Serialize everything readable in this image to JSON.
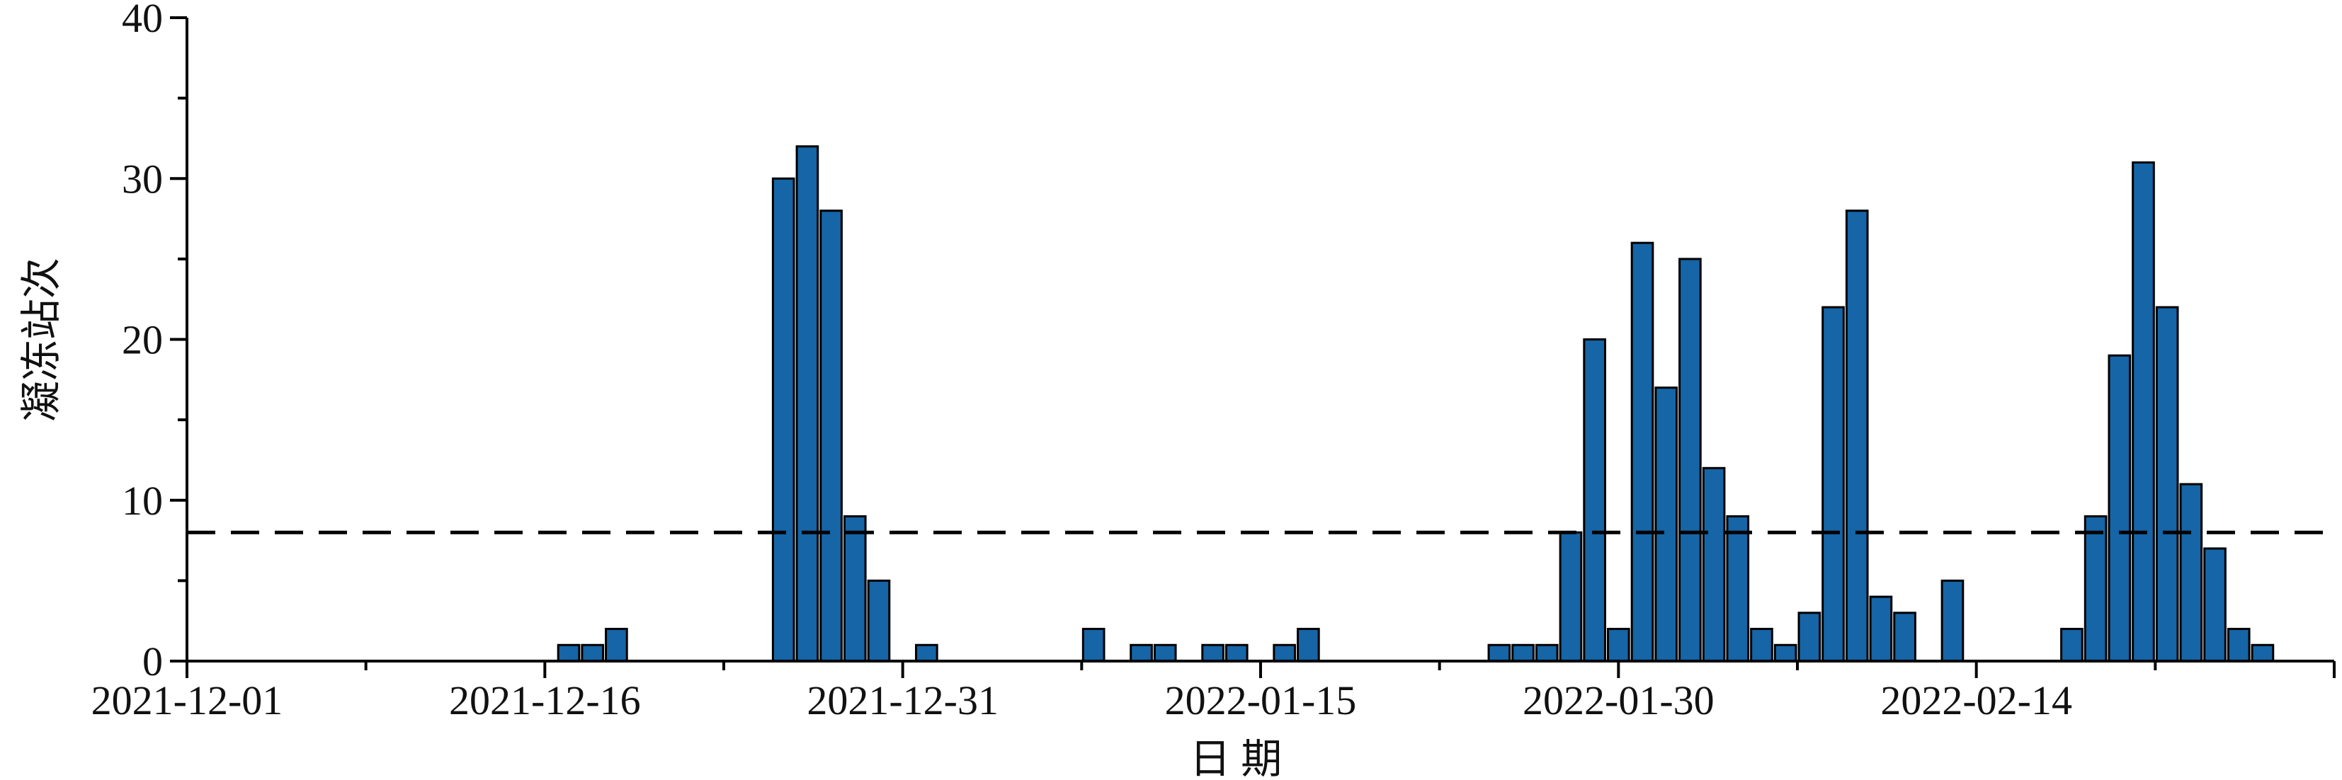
{
  "chart_data": {
    "type": "bar",
    "x_label": "日 期",
    "y_label": "凝冻站次",
    "x": [
      "2021-12-17",
      "2021-12-18",
      "2021-12-19",
      "2021-12-26",
      "2021-12-27",
      "2021-12-28",
      "2021-12-29",
      "2021-12-30",
      "2022-01-01",
      "2022-01-08",
      "2022-01-10",
      "2022-01-11",
      "2022-01-13",
      "2022-01-14",
      "2022-01-16",
      "2022-01-17",
      "2022-01-25",
      "2022-01-26",
      "2022-01-27",
      "2022-01-28",
      "2022-01-29",
      "2022-01-30",
      "2022-01-31",
      "2022-02-01",
      "2022-02-02",
      "2022-02-03",
      "2022-02-04",
      "2022-02-05",
      "2022-02-06",
      "2022-02-07",
      "2022-02-08",
      "2022-02-09",
      "2022-02-10",
      "2022-02-11",
      "2022-02-13",
      "2022-02-18",
      "2022-02-19",
      "2022-02-20",
      "2022-02-21",
      "2022-02-22",
      "2022-02-23",
      "2022-02-24",
      "2022-02-25",
      "2022-02-26"
    ],
    "values": [
      1,
      1,
      2,
      30,
      32,
      28,
      9,
      5,
      1,
      2,
      1,
      1,
      1,
      1,
      1,
      2,
      1,
      1,
      1,
      8,
      20,
      2,
      26,
      17,
      25,
      12,
      9,
      2,
      1,
      3,
      22,
      28,
      4,
      3,
      5,
      2,
      9,
      19,
      31,
      22,
      11,
      7,
      2,
      1
    ],
    "color": "#1565a7",
    "xlim": [
      "2021-12-01",
      "2022-03-01"
    ],
    "xticks": [
      "2021-12-01",
      "2021-12-16",
      "2021-12-31",
      "2022-01-15",
      "2022-01-30",
      "2022-02-14"
    ],
    "xminorticks": [
      "2021-12-08T12:00",
      "2021-12-23T12:00",
      "2022-01-07T12:00",
      "2022-01-22T12:00",
      "2022-02-06T12:00",
      "2022-02-21T12:00"
    ],
    "ylim": [
      0,
      40
    ],
    "yticks": [
      0,
      10,
      20,
      30,
      40
    ],
    "yminorticks": [
      5,
      15,
      25,
      35
    ],
    "threshold": 8
  }
}
